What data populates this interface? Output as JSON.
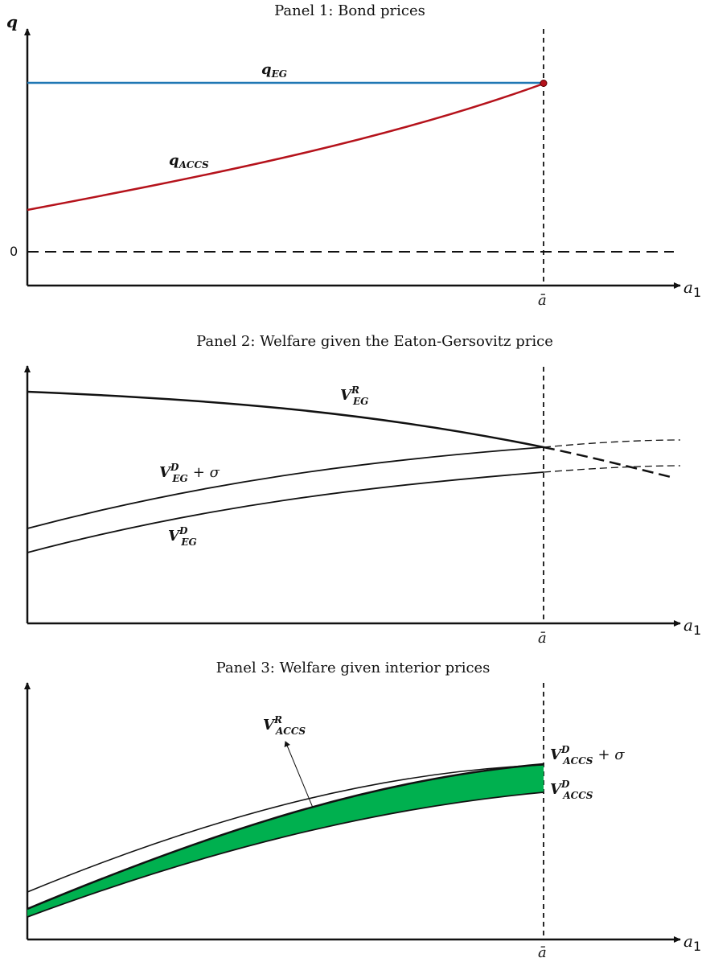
{
  "panels": [
    {
      "title": "Panel 1: Bond prices",
      "y_axis_label": "q",
      "x_axis_label": "a",
      "x_axis_sub": "1",
      "zero_label": "0",
      "threshold_label": "ā",
      "curves": [
        {
          "label": "q",
          "sub": "EG",
          "color": "#1f77b4"
        },
        {
          "label": "q",
          "sub": "ACCS",
          "color": "#b5121b"
        }
      ]
    },
    {
      "title": "Panel 2: Welfare given the Eaton-Gersovitz price",
      "x_axis_label": "a",
      "x_axis_sub": "1",
      "threshold_label": "ā",
      "curves": [
        {
          "label": "V",
          "sup": "R",
          "sub": "EG",
          "tail": ""
        },
        {
          "label": "V",
          "sup": "D",
          "sub": "EG",
          "tail": "+ σ"
        },
        {
          "label": "V",
          "sup": "D",
          "sub": "EG",
          "tail": ""
        }
      ]
    },
    {
      "title": "Panel 3: Welfare given interior prices",
      "x_axis_label": "a",
      "x_axis_sub": "1",
      "threshold_label": "ā",
      "fill_color": "#00b04f",
      "curves": [
        {
          "label": "V",
          "sup": "R",
          "sub": "ACCS",
          "tail": ""
        },
        {
          "label": "V",
          "sup": "D",
          "sub": "ACCS",
          "tail": "+ σ"
        },
        {
          "label": "V",
          "sup": "D",
          "sub": "ACCS",
          "tail": ""
        }
      ]
    }
  ]
}
